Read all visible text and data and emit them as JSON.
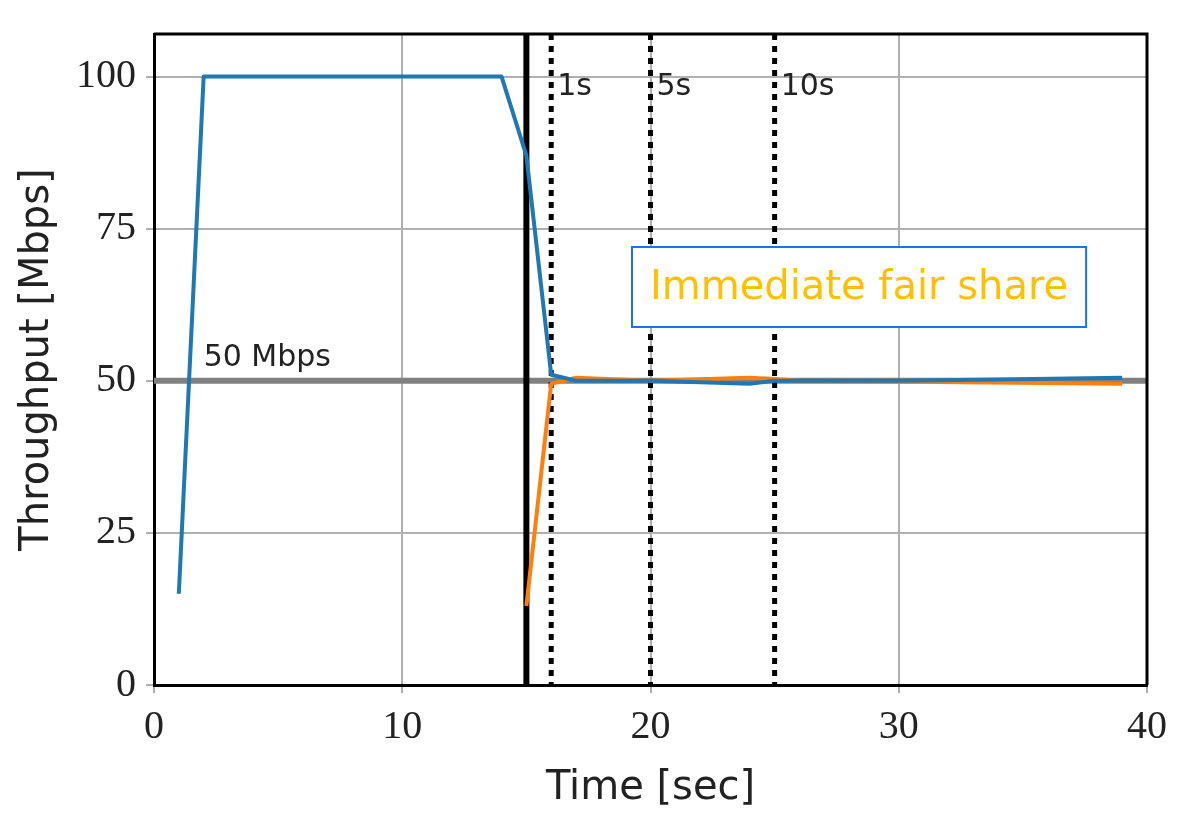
{
  "chart_data": {
    "type": "line",
    "xlabel": "Time [sec]",
    "ylabel": "Throughput [Mbps]",
    "xlim": [
      0,
      40
    ],
    "ylim": [
      0,
      107
    ],
    "xticks": [
      0,
      10,
      20,
      30,
      40
    ],
    "yticks": [
      0,
      25,
      50,
      75,
      100
    ],
    "grid": true,
    "marker": "none",
    "line_style": "solid",
    "series": [
      {
        "color": "#1f77b4",
        "x": [
          1,
          2,
          14,
          15,
          16,
          17,
          20,
          24,
          25,
          30,
          39
        ],
        "values": [
          15,
          100,
          100,
          87,
          51,
          50,
          50,
          49.5,
          50,
          50,
          50.5
        ]
      },
      {
        "color": "#ff7f0e",
        "x": [
          15,
          16,
          17,
          20,
          24,
          25,
          26,
          39
        ],
        "values": [
          13,
          49.5,
          50.5,
          50,
          50.5,
          50.3,
          50,
          49.5
        ]
      }
    ],
    "ref_lines": [
      {
        "axis": "y",
        "value": 50,
        "label": "50 Mbps",
        "color": "#808080",
        "line_style": "solid"
      },
      {
        "axis": "x",
        "value": 15,
        "label": null,
        "color": "#000000",
        "line_style": "solid"
      },
      {
        "axis": "x",
        "value": 16,
        "label": "1s",
        "color": "#000000",
        "line_style": "dotted"
      },
      {
        "axis": "x",
        "value": 20,
        "label": "5s",
        "color": "#000000",
        "line_style": "dotted"
      },
      {
        "axis": "x",
        "value": 25,
        "label": "10s",
        "color": "#000000",
        "line_style": "dotted"
      }
    ],
    "annotations": [
      "Immediate fair share"
    ]
  }
}
